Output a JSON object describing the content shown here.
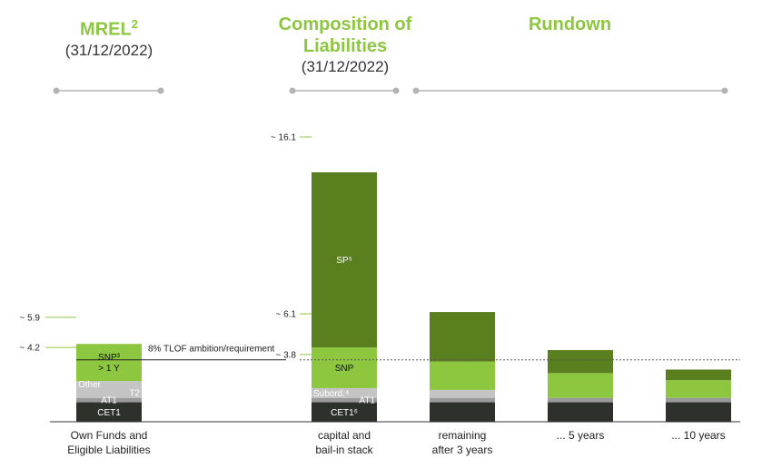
{
  "headers": {
    "mrel": {
      "title": "MREL",
      "sup": "2",
      "sub": "(31/12/2022)"
    },
    "composition": {
      "title_line1": "Composition of",
      "title_line2": "Liabilities",
      "sub": "(31/12/2022)"
    },
    "rundown": {
      "title": "Rundown"
    }
  },
  "colors": {
    "cet1": "#2d302b",
    "at1": "#9a9a9a",
    "t2": "#c4c4c4",
    "snp": "#8dc63f",
    "sp": "#5a7f1f",
    "accent": "#8dc63f",
    "baseline": "#333333"
  },
  "chart_data": {
    "type": "bar",
    "stacked": true,
    "categories": [
      "Own Funds and\nEligible Liabilities",
      "capital and\nbail-in stack",
      "remaining\nafter 3 years",
      "... 5 years",
      "... 10 years"
    ],
    "series": [
      {
        "name": "CET1",
        "values": [
          1.1,
          1.1,
          1.1,
          1.1,
          1.1
        ]
      },
      {
        "name": "AT1",
        "values": [
          0.25,
          0.25,
          0.25,
          0.25,
          0.25
        ]
      },
      {
        "name": "T2",
        "values": [
          0.6,
          0.55,
          0.45,
          0.0,
          0.0
        ]
      },
      {
        "name": "Other",
        "values": [
          0.35,
          0.0,
          0.0,
          0.0,
          0.0
        ]
      },
      {
        "name": "SNP",
        "values": [
          2.1,
          2.3,
          1.6,
          1.4,
          1.0
        ]
      },
      {
        "name": "SP",
        "values": [
          0.0,
          9.9,
          2.8,
          1.3,
          0.6
        ]
      }
    ],
    "segment_labels": [
      [
        {
          "series": "CET1",
          "text": "CET1",
          "color": "#ffffff"
        },
        {
          "series": "AT1",
          "text": "AT1",
          "color": "#ffffff"
        },
        {
          "series": "T2",
          "text": "T2",
          "color": "#ffffff",
          "align": "right"
        },
        {
          "series": "Other",
          "text": "Other",
          "color": "#ffffff",
          "align": "left"
        },
        {
          "series": "SNP",
          "text": "SNP³\n> 1 Y",
          "color": "#111111"
        }
      ],
      [
        {
          "series": "CET1",
          "text": "CET1⁶",
          "color": "#ffffff"
        },
        {
          "series": "AT1",
          "text": "AT1",
          "color": "#ffffff",
          "align": "right"
        },
        {
          "series": "T2",
          "text": "Subord.⁴",
          "color": "#ffffff",
          "align": "left"
        },
        {
          "series": "SNP",
          "text": "SNP",
          "color": "#111111"
        },
        {
          "series": "SP",
          "text": "SP⁵",
          "color": "#ffffff"
        }
      ],
      [],
      [],
      []
    ],
    "value_labels": [
      {
        "text": "~ 5.9",
        "value": 5.9,
        "bar": 0
      },
      {
        "text": "~ 4.2",
        "value": 4.2,
        "bar": 0
      },
      {
        "text": "~ 16.1",
        "value": 16.1,
        "bar": 1
      },
      {
        "text": "~ 6.1",
        "value": 6.1,
        "bar": 1
      },
      {
        "text": "~ 3.8",
        "value": 3.8,
        "bar": 1
      }
    ],
    "reference_line": {
      "value": 3.5,
      "label": "8% TLOF ambition/requirement"
    },
    "ylim": [
      0,
      16.1
    ]
  }
}
